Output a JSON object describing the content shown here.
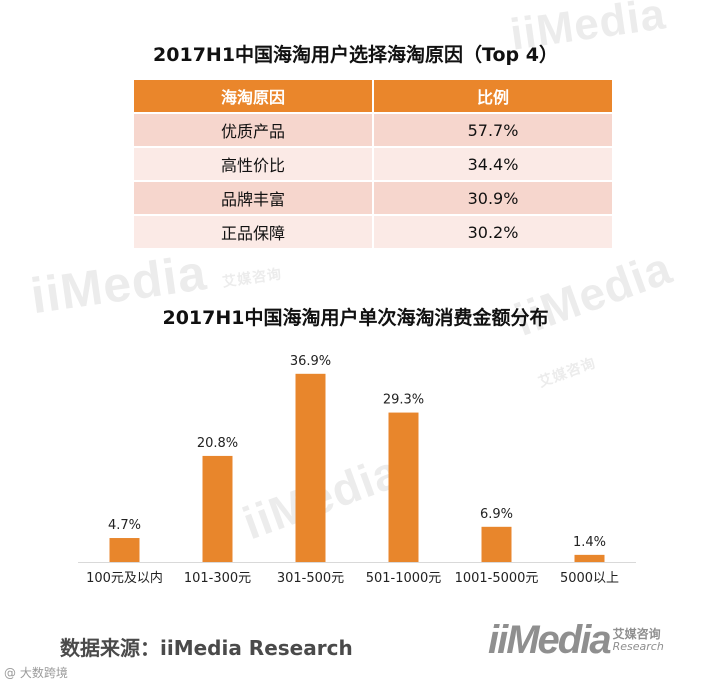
{
  "reasons_table": {
    "title": "2017H1中国海淘用户选择海淘原因（Top 4）",
    "headers": [
      "海淘原因",
      "比例"
    ],
    "rows": [
      {
        "reason": "优质产品",
        "ratio": "57.7%"
      },
      {
        "reason": "高性价比",
        "ratio": "34.4%"
      },
      {
        "reason": "品牌丰富",
        "ratio": "30.9%"
      },
      {
        "reason": "正品保障",
        "ratio": "30.2%"
      }
    ]
  },
  "chart_data": {
    "type": "bar",
    "title": "2017H1中国海淘用户单次海淘消费金额分布",
    "categories": [
      "100元及以内",
      "101-300元",
      "301-500元",
      "501-1000元",
      "1001-5000元",
      "5000以上"
    ],
    "values": [
      4.7,
      20.8,
      36.9,
      29.3,
      6.9,
      1.4
    ],
    "value_labels": [
      "4.7%",
      "20.8%",
      "36.9%",
      "29.3%",
      "6.9%",
      "1.4%"
    ],
    "unit": "%",
    "xlabel": "",
    "ylabel": "",
    "ylim": [
      0,
      40
    ],
    "grid": false,
    "bar_color": "#e8862c"
  },
  "source": "数据来源：iiMedia Research",
  "logo": {
    "text": "iiMedia",
    "cn": "艾媒咨询",
    "en": "Research"
  },
  "weibo_mark": "@ 大数跨境",
  "watermark": {
    "brand": "iiMedia",
    "cn": "艾媒咨询",
    "en": "Research"
  },
  "colors": {
    "accent": "#ea862b",
    "row_odd": "#f6d6cd",
    "row_even": "#fbeae6",
    "source_text": "#4a4a4a"
  }
}
